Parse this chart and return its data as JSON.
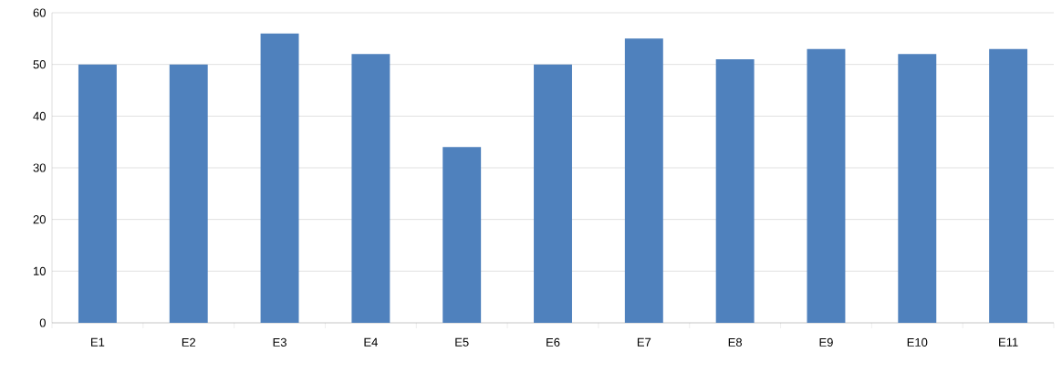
{
  "chart_data": {
    "type": "bar",
    "categories": [
      "E1",
      "E2",
      "E3",
      "E4",
      "E5",
      "E6",
      "E7",
      "E8",
      "E9",
      "E10",
      "E11"
    ],
    "values": [
      50,
      50,
      56,
      52,
      34,
      50,
      55,
      51,
      53,
      52,
      53
    ],
    "color": "#4f81bd",
    "ylim": [
      0,
      60
    ],
    "yticks": [
      0,
      10,
      20,
      30,
      40,
      50,
      60
    ],
    "grid": "y"
  }
}
